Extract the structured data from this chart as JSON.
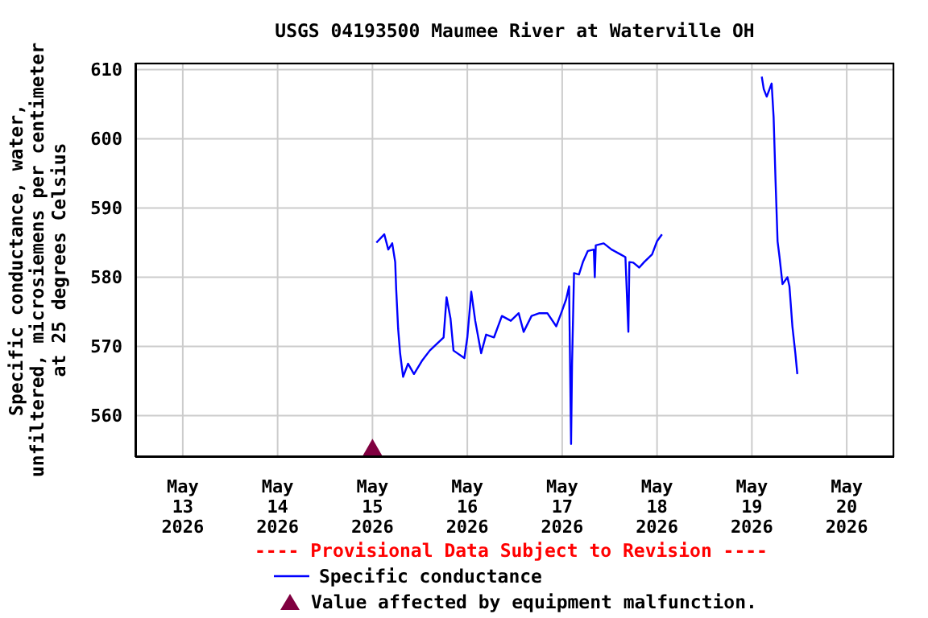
{
  "chart_data": {
    "type": "line",
    "title": "USGS 04193500 Maumee River at Waterville OH",
    "ylabel": "Specific conductance, water, unfiltered, microsiemens per centimeter at 25 degrees Celsius",
    "annotations": [
      "---- Provisional Data Subject to Revision ----"
    ],
    "xlim": [
      "2026-05-12T12:00",
      "2026-05-20T12:00"
    ],
    "xticks": [
      {
        "value": "2026-05-13",
        "label": "May\n13\n2026"
      },
      {
        "value": "2026-05-14",
        "label": "May\n14\n2026"
      },
      {
        "value": "2026-05-15",
        "label": "May\n15\n2026"
      },
      {
        "value": "2026-05-16",
        "label": "May\n16\n2026"
      },
      {
        "value": "2026-05-17",
        "label": "May\n17\n2026"
      },
      {
        "value": "2026-05-18",
        "label": "May\n18\n2026"
      },
      {
        "value": "2026-05-19",
        "label": "May\n19\n2026"
      },
      {
        "value": "2026-05-20",
        "label": "May\n20\n2026"
      }
    ],
    "ylim": [
      554,
      611
    ],
    "yticks": [
      560,
      570,
      580,
      590,
      600,
      610
    ],
    "grid": true,
    "legend": "bottom",
    "series": [
      {
        "name": "Specific conductance",
        "color": "#0000ff",
        "marker": "none",
        "line_style": "solid",
        "x": [
          "2026-05-15T01:00",
          "2026-05-15T03:00",
          "2026-05-15T04:00",
          "2026-05-15T05:00",
          "2026-05-15T05:45",
          "2026-05-15T06:00",
          "2026-05-15T06:30",
          "2026-05-15T07:00",
          "2026-05-15T07:45",
          "2026-05-15T09:00",
          "2026-05-15T10:30",
          "2026-05-15T12:30",
          "2026-05-15T14:30",
          "2026-05-15T16:00",
          "2026-05-15T18:00",
          "2026-05-15T18:45",
          "2026-05-15T19:45",
          "2026-05-15T20:30",
          "2026-05-15T23:15",
          "2026-05-16T00:00",
          "2026-05-16T01:00",
          "2026-05-16T02:00",
          "2026-05-16T03:30",
          "2026-05-16T04:45",
          "2026-05-16T06:45",
          "2026-05-16T08:45",
          "2026-05-16T11:00",
          "2026-05-16T13:00",
          "2026-05-16T14:15",
          "2026-05-16T16:15",
          "2026-05-16T18:15",
          "2026-05-16T20:15",
          "2026-05-16T22:30",
          "2026-05-16T23:45",
          "2026-05-17T01:00",
          "2026-05-17T01:45",
          "2026-05-17T02:15",
          "2026-05-17T02:30",
          "2026-05-17T03:00",
          "2026-05-17T04:15",
          "2026-05-17T05:15",
          "2026-05-17T06:30",
          "2026-05-17T08:00",
          "2026-05-17T08:15",
          "2026-05-17T08:30",
          "2026-05-17T10:30",
          "2026-05-17T12:30",
          "2026-05-17T14:45",
          "2026-05-17T16:00",
          "2026-05-17T16:45",
          "2026-05-17T17:00",
          "2026-05-17T18:00",
          "2026-05-17T19:30",
          "2026-05-17T20:45",
          "2026-05-17T22:45",
          "2026-05-18T00:00",
          "2026-05-18T01:15",
          "2026-05-18T12:00",
          "2026-05-19T02:30",
          "2026-05-19T03:00",
          "2026-05-19T03:45",
          "2026-05-19T05:00",
          "2026-05-19T05:30",
          "2026-05-19T06:00",
          "2026-05-19T06:30",
          "2026-05-19T07:00",
          "2026-05-19T07:45",
          "2026-05-19T09:00",
          "2026-05-19T09:30",
          "2026-05-19T10:15",
          "2026-05-19T11:00",
          "2026-05-19T11:30"
        ],
        "values": [
          585,
          586.2,
          584,
          584.9,
          582.2,
          578.3,
          572.5,
          569,
          565.6,
          567.5,
          566,
          567.9,
          569.4,
          570.2,
          571.3,
          577.1,
          574,
          569.4,
          568.3,
          571.3,
          577.9,
          573.7,
          569,
          571.7,
          571.3,
          574.4,
          573.7,
          574.8,
          572.1,
          574.4,
          574.8,
          574.8,
          572.9,
          574.8,
          576.8,
          578.7,
          555.9,
          567.5,
          580.6,
          580.4,
          582.2,
          583.8,
          584,
          580,
          584.6,
          584.9,
          584,
          583.3,
          582.9,
          572.1,
          582.2,
          582.1,
          581.4,
          582.2,
          583.3,
          585.2,
          586.2,
          null,
          609,
          607.2,
          606.1,
          608,
          603.1,
          593.7,
          585.2,
          582.9,
          579,
          580,
          578.7,
          572.9,
          569,
          566
        ]
      },
      {
        "name": "Value affected by equipment malfunction.",
        "type": "scatter",
        "color": "#800040",
        "marker": "triangle",
        "x": [
          "2026-05-15T00:00"
        ],
        "values": [
          555
        ]
      }
    ]
  }
}
